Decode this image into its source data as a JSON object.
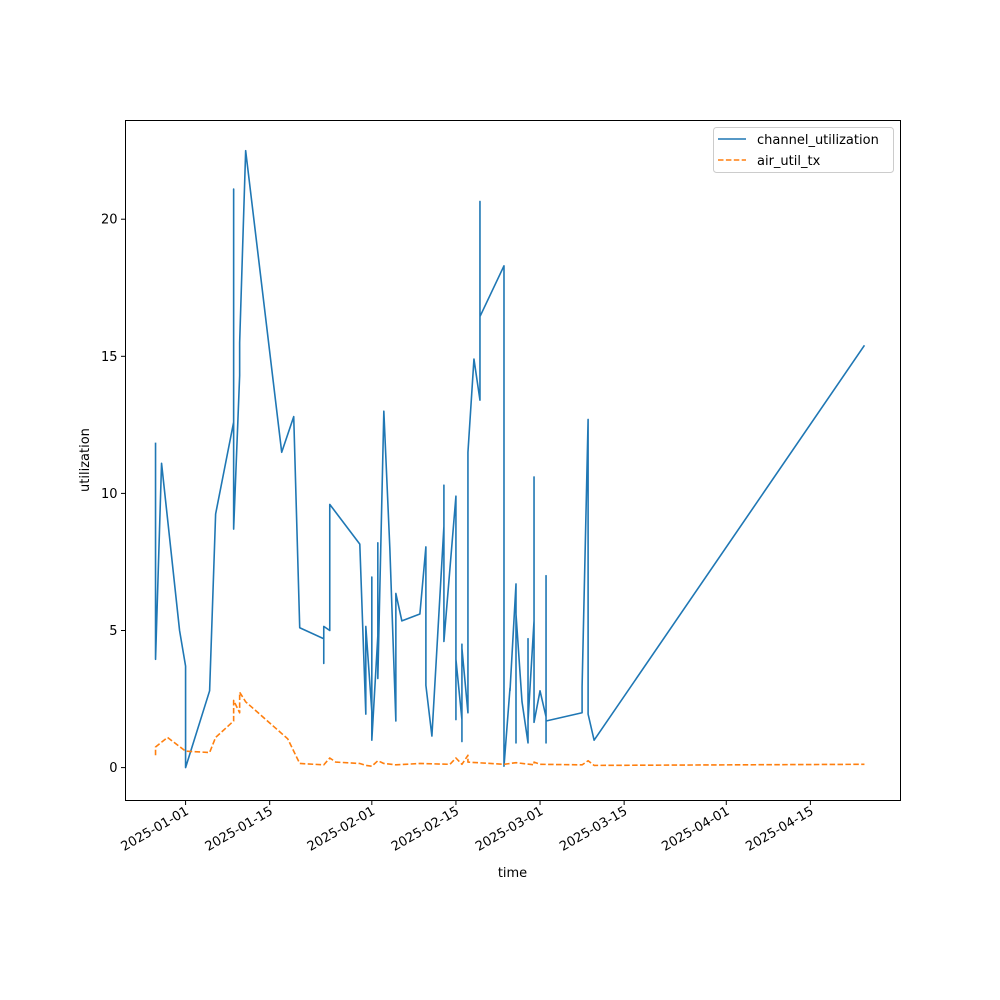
{
  "chart_data": {
    "type": "line",
    "xlabel": "time",
    "ylabel": "utilization",
    "x_axis": "date",
    "xlim": [
      "2024-12-22",
      "2025-04-30"
    ],
    "ylim": [
      -1.2,
      23.6
    ],
    "yticks": [
      0,
      5,
      10,
      15,
      20
    ],
    "xticks": [
      "2025-01-01",
      "2025-01-15",
      "2025-02-01",
      "2025-02-15",
      "2025-03-01",
      "2025-03-15",
      "2025-04-01",
      "2025-04-15"
    ],
    "grid": false,
    "legend_position": "top-right",
    "series": [
      {
        "name": "channel_utilization",
        "color": "#1f77b4",
        "style": "solid",
        "points": [
          [
            "2024-12-27",
            11.85
          ],
          [
            "2024-12-27",
            3.95
          ],
          [
            "2024-12-28",
            11.1
          ],
          [
            "2024-12-31",
            5.0
          ],
          [
            "2025-01-01",
            3.7
          ],
          [
            "2025-01-01",
            0.0
          ],
          [
            "2025-01-05",
            2.8
          ],
          [
            "2025-01-06",
            9.25
          ],
          [
            "2025-01-09",
            12.6
          ],
          [
            "2025-01-09",
            21.1
          ],
          [
            "2025-01-09",
            8.7
          ],
          [
            "2025-01-10",
            14.3
          ],
          [
            "2025-01-10",
            15.5
          ],
          [
            "2025-01-11",
            22.5
          ],
          [
            "2025-01-17",
            11.5
          ],
          [
            "2025-01-19",
            12.8
          ],
          [
            "2025-01-20",
            5.1
          ],
          [
            "2025-01-24",
            4.7
          ],
          [
            "2025-01-24",
            3.8
          ],
          [
            "2025-01-24",
            5.15
          ],
          [
            "2025-01-25",
            5.0
          ],
          [
            "2025-01-25",
            9.6
          ],
          [
            "2025-01-30",
            8.15
          ],
          [
            "2025-01-31",
            1.95
          ],
          [
            "2025-01-31",
            5.15
          ],
          [
            "2025-02-01",
            2.05
          ],
          [
            "2025-02-01",
            6.95
          ],
          [
            "2025-02-01",
            1.0
          ],
          [
            "2025-02-02",
            4.8
          ],
          [
            "2025-02-02",
            8.2
          ],
          [
            "2025-02-02",
            3.25
          ],
          [
            "2025-02-03",
            13.0
          ],
          [
            "2025-02-04",
            8.0
          ],
          [
            "2025-02-05",
            1.7
          ],
          [
            "2025-02-05",
            6.35
          ],
          [
            "2025-02-06",
            5.35
          ],
          [
            "2025-02-09",
            5.6
          ],
          [
            "2025-02-10",
            8.05
          ],
          [
            "2025-02-10",
            3.0
          ],
          [
            "2025-02-11",
            1.15
          ],
          [
            "2025-02-13",
            8.8
          ],
          [
            "2025-02-13",
            10.3
          ],
          [
            "2025-02-13",
            4.6
          ],
          [
            "2025-02-15",
            9.9
          ],
          [
            "2025-02-15",
            1.95
          ],
          [
            "2025-02-15",
            1.75
          ],
          [
            "2025-02-15",
            3.95
          ],
          [
            "2025-02-16",
            1.75
          ],
          [
            "2025-02-16",
            4.5
          ],
          [
            "2025-02-16",
            0.95
          ],
          [
            "2025-02-16",
            4.35
          ],
          [
            "2025-02-17",
            2.0
          ],
          [
            "2025-02-17",
            6.5
          ],
          [
            "2025-02-17",
            11.5
          ],
          [
            "2025-02-18",
            14.9
          ],
          [
            "2025-02-19",
            13.4
          ],
          [
            "2025-02-19",
            20.65
          ],
          [
            "2025-02-19",
            16.45
          ],
          [
            "2025-02-23",
            18.3
          ],
          [
            "2025-02-23",
            0.05
          ],
          [
            "2025-02-24",
            2.9
          ],
          [
            "2025-02-24",
            2.8
          ],
          [
            "2025-02-25",
            6.7
          ],
          [
            "2025-02-25",
            0.9
          ],
          [
            "2025-02-25",
            5.6
          ],
          [
            "2025-02-26",
            2.4
          ],
          [
            "2025-02-27",
            0.9
          ],
          [
            "2025-02-27",
            4.7
          ],
          [
            "2025-02-27",
            1.7
          ],
          [
            "2025-02-28",
            5.35
          ],
          [
            "2025-02-28",
            1.8
          ],
          [
            "2025-02-28",
            2.85
          ],
          [
            "2025-02-28",
            10.6
          ],
          [
            "2025-02-28",
            1.65
          ],
          [
            "2025-03-01",
            2.8
          ],
          [
            "2025-03-02",
            1.85
          ],
          [
            "2025-03-02",
            7.0
          ],
          [
            "2025-03-02",
            0.9
          ],
          [
            "2025-03-02",
            2.95
          ],
          [
            "2025-03-02",
            1.7
          ],
          [
            "2025-03-08",
            2.0
          ],
          [
            "2025-03-08",
            2.95
          ],
          [
            "2025-03-09",
            12.7
          ],
          [
            "2025-03-09",
            1.95
          ],
          [
            "2025-03-09",
            9.5
          ],
          [
            "2025-03-09",
            2.9
          ],
          [
            "2025-03-09",
            1.95
          ],
          [
            "2025-03-10",
            1.0
          ],
          [
            "2025-04-24",
            15.4
          ]
        ]
      },
      {
        "name": "air_util_tx",
        "color": "#ff7f0e",
        "style": "dashed",
        "points": [
          [
            "2024-12-27",
            0.45
          ],
          [
            "2024-12-27",
            0.75
          ],
          [
            "2024-12-29",
            1.1
          ],
          [
            "2025-01-01",
            0.6
          ],
          [
            "2025-01-05",
            0.55
          ],
          [
            "2025-01-06",
            1.1
          ],
          [
            "2025-01-09",
            1.7
          ],
          [
            "2025-01-09",
            2.45
          ],
          [
            "2025-01-10",
            2.0
          ],
          [
            "2025-01-10",
            2.75
          ],
          [
            "2025-01-11",
            2.4
          ],
          [
            "2025-01-18",
            1.05
          ],
          [
            "2025-01-20",
            0.15
          ],
          [
            "2025-01-24",
            0.1
          ],
          [
            "2025-01-25",
            0.35
          ],
          [
            "2025-01-26",
            0.2
          ],
          [
            "2025-01-30",
            0.15
          ],
          [
            "2025-01-31",
            0.08
          ],
          [
            "2025-02-01",
            0.05
          ],
          [
            "2025-02-02",
            0.25
          ],
          [
            "2025-02-03",
            0.15
          ],
          [
            "2025-02-05",
            0.1
          ],
          [
            "2025-02-09",
            0.15
          ],
          [
            "2025-02-14",
            0.12
          ],
          [
            "2025-02-15",
            0.35
          ],
          [
            "2025-02-16",
            0.12
          ],
          [
            "2025-02-17",
            0.45
          ],
          [
            "2025-02-17",
            0.2
          ],
          [
            "2025-02-23",
            0.12
          ],
          [
            "2025-02-25",
            0.18
          ],
          [
            "2025-02-28",
            0.1
          ],
          [
            "2025-02-28",
            0.2
          ],
          [
            "2025-03-01",
            0.12
          ],
          [
            "2025-03-08",
            0.1
          ],
          [
            "2025-03-09",
            0.25
          ],
          [
            "2025-03-10",
            0.08
          ],
          [
            "2025-04-24",
            0.12
          ]
        ]
      }
    ]
  }
}
